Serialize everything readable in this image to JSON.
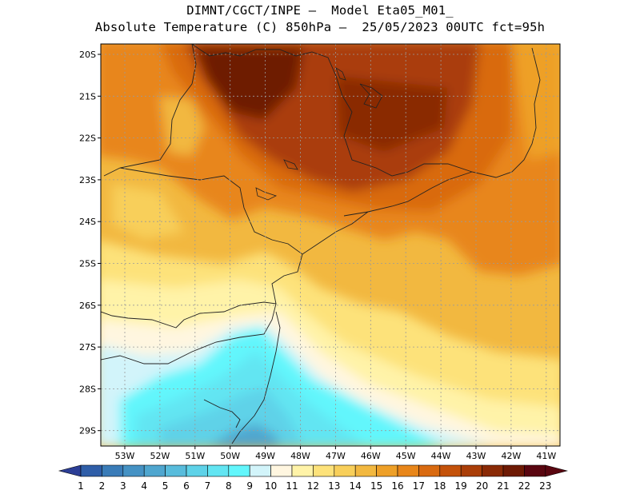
{
  "title": {
    "line1": "DIMNT/CGCT/INPE –  Model Eta05_M01_",
    "line2": "Absolute Temperature (C) 850hPa –  25/05/2023 00UTC fct=95h"
  },
  "map": {
    "variable": "Absolute Temperature",
    "units": "C",
    "level": "850hPa",
    "lat_labels": [
      "20S",
      "21S",
      "22S",
      "23S",
      "24S",
      "25S",
      "26S",
      "27S",
      "28S",
      "29S"
    ],
    "lon_labels": [
      "53W",
      "52W",
      "51W",
      "50W",
      "49W",
      "48W",
      "47W",
      "46W",
      "45W",
      "44W",
      "43W",
      "42W",
      "41W"
    ]
  },
  "colorbar": {
    "labels": [
      "1",
      "2",
      "3",
      "4",
      "5",
      "6",
      "7",
      "8",
      "9",
      "10",
      "11",
      "12",
      "13",
      "14",
      "15",
      "16",
      "17",
      "18",
      "19",
      "20",
      "21",
      "22",
      "23"
    ],
    "colors": [
      "#2c3e96",
      "#2f5ea8",
      "#3a7cb8",
      "#4592c4",
      "#4fa6cf",
      "#58bcdc",
      "#5ed2e8",
      "#62e5f2",
      "#62f6fc",
      "#d2f4fa",
      "#fff6e0",
      "#fff3a8",
      "#fde27a",
      "#f8cf5a",
      "#f2b840",
      "#eea028",
      "#e8861a",
      "#d96a10",
      "#c4520a",
      "#aa3e08",
      "#8a2a06",
      "#6e1a04",
      "#5a0610"
    ]
  }
}
